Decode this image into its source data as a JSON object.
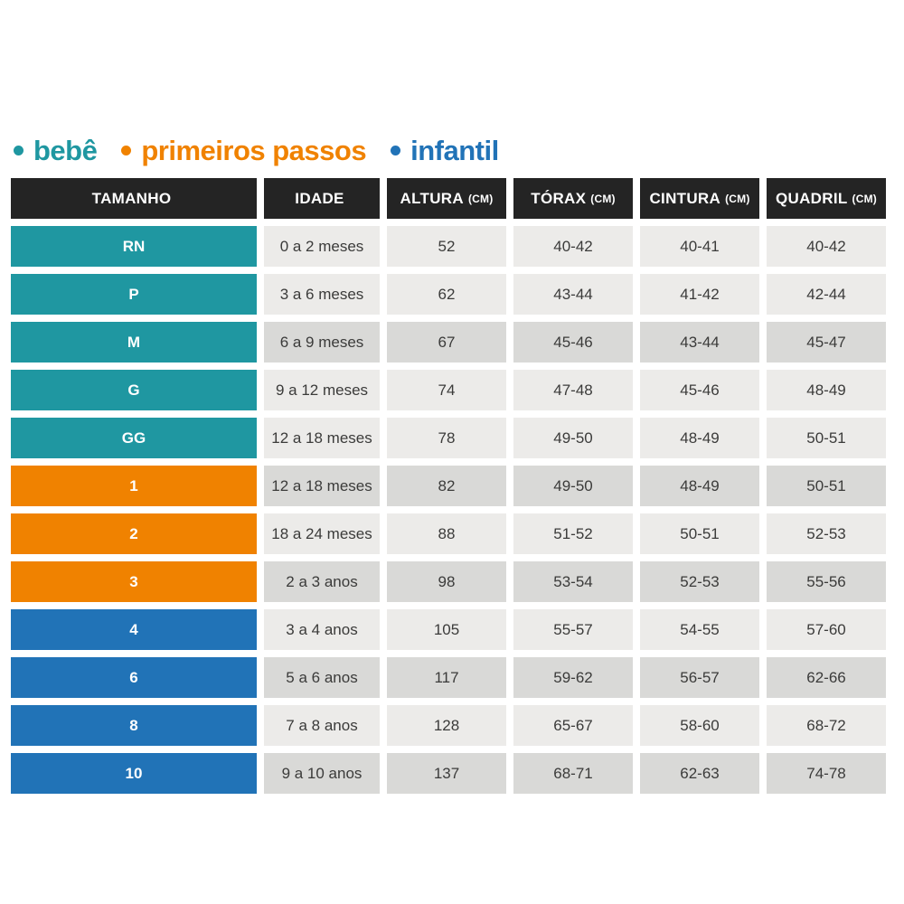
{
  "legend": {
    "items": [
      {
        "label": "bebê",
        "color": "#1f97a1"
      },
      {
        "label": "primeiros passos",
        "color": "#f08200"
      },
      {
        "label": "infantil",
        "color": "#2173b7"
      }
    ]
  },
  "table": {
    "headers": [
      {
        "label": "TAMANHO",
        "unit": ""
      },
      {
        "label": "IDADE",
        "unit": ""
      },
      {
        "label": "ALTURA",
        "unit": "(CM)"
      },
      {
        "label": "TÓRAX",
        "unit": "(CM)"
      },
      {
        "label": "CINTURA",
        "unit": "(CM)"
      },
      {
        "label": "QUADRIL",
        "unit": "(CM)"
      }
    ],
    "rows": [
      {
        "size": "RN",
        "group": "bebê",
        "idade": "0 a 2 meses",
        "altura": "52",
        "torax": "40-42",
        "cintura": "40-41",
        "quadril": "40-42"
      },
      {
        "size": "P",
        "group": "bebê",
        "idade": "3 a 6 meses",
        "altura": "62",
        "torax": "43-44",
        "cintura": "41-42",
        "quadril": "42-44"
      },
      {
        "size": "M",
        "group": "bebê",
        "idade": "6 a 9 meses",
        "altura": "67",
        "torax": "45-46",
        "cintura": "43-44",
        "quadril": "45-47"
      },
      {
        "size": "G",
        "group": "bebê",
        "idade": "9 a 12 meses",
        "altura": "74",
        "torax": "47-48",
        "cintura": "45-46",
        "quadril": "48-49"
      },
      {
        "size": "GG",
        "group": "bebê",
        "idade": "12 a 18 meses",
        "altura": "78",
        "torax": "49-50",
        "cintura": "48-49",
        "quadril": "50-51"
      },
      {
        "size": "1",
        "group": "primeiros passos",
        "idade": "12 a 18 meses",
        "altura": "82",
        "torax": "49-50",
        "cintura": "48-49",
        "quadril": "50-51"
      },
      {
        "size": "2",
        "group": "primeiros passos",
        "idade": "18 a 24 meses",
        "altura": "88",
        "torax": "51-52",
        "cintura": "50-51",
        "quadril": "52-53"
      },
      {
        "size": "3",
        "group": "primeiros passos",
        "idade": "2 a 3 anos",
        "altura": "98",
        "torax": "53-54",
        "cintura": "52-53",
        "quadril": "55-56"
      },
      {
        "size": "4",
        "group": "infantil",
        "idade": "3 a 4 anos",
        "altura": "105",
        "torax": "55-57",
        "cintura": "54-55",
        "quadril": "57-60"
      },
      {
        "size": "6",
        "group": "infantil",
        "idade": "5 a 6 anos",
        "altura": "117",
        "torax": "59-62",
        "cintura": "56-57",
        "quadril": "62-66"
      },
      {
        "size": "8",
        "group": "infantil",
        "idade": "7 a 8 anos",
        "altura": "128",
        "torax": "65-67",
        "cintura": "58-60",
        "quadril": "68-72"
      },
      {
        "size": "10",
        "group": "infantil",
        "idade": "9 a 10 anos",
        "altura": "137",
        "torax": "68-71",
        "cintura": "62-63",
        "quadril": "74-78"
      }
    ]
  },
  "colors": {
    "teal": "#1f97a1",
    "orange": "#f08200",
    "blue": "#2173b7",
    "header-bg": "#242424",
    "header-text": "#ffffff",
    "cell-light": "#ecebe9",
    "cell-dark": "#d9d9d7",
    "cell-text": "#3b3b3a"
  },
  "chart_data": {
    "type": "table",
    "title": "",
    "legend_entries": [
      "bebê",
      "primeiros passos",
      "infantil"
    ],
    "legend_colors": [
      "#1f97a1",
      "#f08200",
      "#2173b7"
    ],
    "columns": [
      "TAMANHO",
      "IDADE",
      "ALTURA (CM)",
      "TÓRAX (CM)",
      "CINTURA (CM)",
      "QUADRIL (CM)"
    ],
    "rows": [
      [
        "RN",
        "0 a 2 meses",
        "52",
        "40-42",
        "40-41",
        "40-42"
      ],
      [
        "P",
        "3 a 6 meses",
        "62",
        "43-44",
        "41-42",
        "42-44"
      ],
      [
        "M",
        "6 a 9 meses",
        "67",
        "45-46",
        "43-44",
        "45-47"
      ],
      [
        "G",
        "9 a 12 meses",
        "74",
        "47-48",
        "45-46",
        "48-49"
      ],
      [
        "GG",
        "12 a 18 meses",
        "78",
        "49-50",
        "48-49",
        "50-51"
      ],
      [
        "1",
        "12 a 18 meses",
        "82",
        "49-50",
        "48-49",
        "50-51"
      ],
      [
        "2",
        "18 a 24 meses",
        "88",
        "51-52",
        "50-51",
        "52-53"
      ],
      [
        "3",
        "2 a 3 anos",
        "98",
        "53-54",
        "52-53",
        "55-56"
      ],
      [
        "4",
        "3 a 4 anos",
        "105",
        "55-57",
        "54-55",
        "57-60"
      ],
      [
        "6",
        "5 a 6 anos",
        "117",
        "59-62",
        "56-57",
        "62-66"
      ],
      [
        "8",
        "7 a 8 anos",
        "128",
        "65-67",
        "58-60",
        "68-72"
      ],
      [
        "10",
        "9 a 10 anos",
        "137",
        "68-71",
        "62-63",
        "74-78"
      ]
    ],
    "row_groups": [
      "bebê",
      "bebê",
      "bebê",
      "bebê",
      "bebê",
      "primeiros passos",
      "primeiros passos",
      "primeiros passos",
      "infantil",
      "infantil",
      "infantil",
      "infantil"
    ]
  }
}
